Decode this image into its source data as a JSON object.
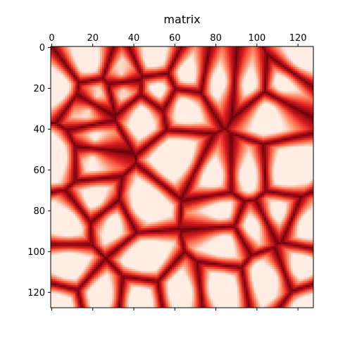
{
  "chart_data": {
    "type": "heatmap",
    "title": "matrix",
    "xlabel": "",
    "ylabel": "",
    "rows": 128,
    "cols": 128,
    "x_axis_position": "top",
    "xlim": [
      0,
      127
    ],
    "ylim": [
      127,
      0
    ],
    "x_ticks": [
      0,
      20,
      40,
      60,
      80,
      100,
      120
    ],
    "y_ticks": [
      0,
      20,
      40,
      60,
      80,
      100,
      120
    ],
    "grid": false,
    "legend": "none",
    "colormap": "Reds",
    "colormap_stops": [
      "#fff5f0",
      "#fee0d2",
      "#fcbba1",
      "#fc9272",
      "#fb6a4a",
      "#ef3b2c",
      "#cb181d",
      "#a50f15",
      "#67000d"
    ],
    "value_range": [
      0,
      1
    ],
    "value_description": "distance to nearest seed; low values near seeds (light), high values at cell boundaries (dark red)",
    "seeds": [
      [
        8,
        19
      ],
      [
        13,
        34
      ],
      [
        20,
        3
      ],
      [
        24,
        22
      ],
      [
        31,
        18
      ],
      [
        21,
        35
      ],
      [
        21,
        52
      ],
      [
        28,
        64
      ],
      [
        17,
        82
      ],
      [
        18,
        96
      ],
      [
        19,
        112
      ],
      [
        5,
        122
      ],
      [
        30,
        106
      ],
      [
        32,
        44
      ],
      [
        6,
        50
      ],
      [
        14,
        66
      ],
      [
        45,
        21
      ],
      [
        54,
        20
      ],
      [
        54,
        62
      ],
      [
        63,
        80
      ],
      [
        63,
        95
      ],
      [
        62,
        113
      ],
      [
        54,
        3
      ],
      [
        75,
        22
      ],
      [
        78,
        43
      ],
      [
        81,
        83
      ],
      [
        81,
        110
      ],
      [
        86,
        8
      ],
      [
        85,
        30
      ],
      [
        87,
        98
      ],
      [
        87,
        124
      ],
      [
        95,
        84
      ],
      [
        103,
        45
      ],
      [
        107,
        8
      ],
      [
        108,
        120
      ],
      [
        113,
        107
      ],
      [
        118,
        81
      ],
      [
        120,
        64
      ],
      [
        122,
        25
      ],
      [
        124,
        42
      ],
      [
        127,
        3
      ],
      [
        127,
        126
      ]
    ]
  }
}
